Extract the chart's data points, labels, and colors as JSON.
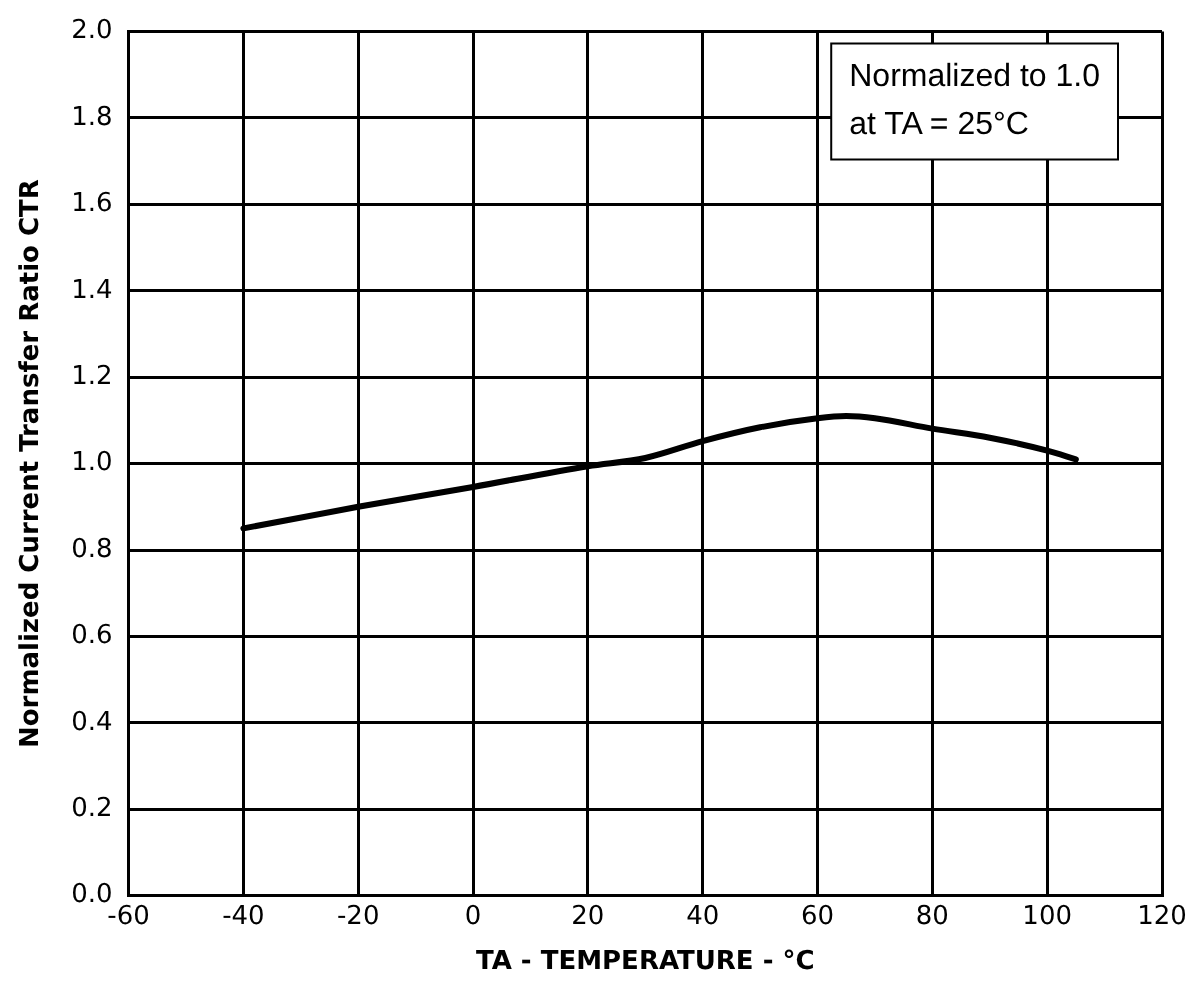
{
  "chart_data": {
    "type": "line",
    "xlabel": "TA - TEMPERATURE - °C",
    "ylabel": "Normalized Current Transfer Ratio CTR",
    "x": [
      -40,
      -20,
      0,
      20,
      30,
      40,
      50,
      60,
      65,
      70,
      80,
      90,
      100,
      105
    ],
    "series": [
      {
        "color": "#000000",
        "values": [
          0.85,
          0.9,
          0.946,
          0.994,
          1.013,
          1.052,
          1.084,
          1.105,
          1.11,
          1.105,
          1.081,
          1.06,
          1.03,
          1.01
        ]
      }
    ],
    "xlim": [
      -60,
      120
    ],
    "xticks": [
      -60,
      -40,
      -20,
      0,
      20,
      40,
      60,
      80,
      100,
      120
    ],
    "ylim": [
      0,
      2
    ],
    "yticks": [
      {
        "value": 0,
        "label": "0.0"
      },
      {
        "value": 0.2,
        "label": "0.2"
      },
      {
        "value": 0.4,
        "label": "0.4"
      },
      {
        "value": 0.6,
        "label": "0.6"
      },
      {
        "value": 0.8,
        "label": "0.8"
      },
      {
        "value": 1,
        "label": "1.0"
      },
      {
        "value": 1.2,
        "label": "1.2"
      },
      {
        "value": 1.4,
        "label": "1.4"
      },
      {
        "value": 1.6,
        "label": "1.6"
      },
      {
        "value": 1.8,
        "label": "1.8"
      },
      {
        "value": 2,
        "label": "2.0"
      }
    ],
    "grid": true,
    "legend": false,
    "marker": "none",
    "line_style": "solid",
    "annotations": [
      "Normalized to 1.0\nat TA = 25°C"
    ]
  }
}
